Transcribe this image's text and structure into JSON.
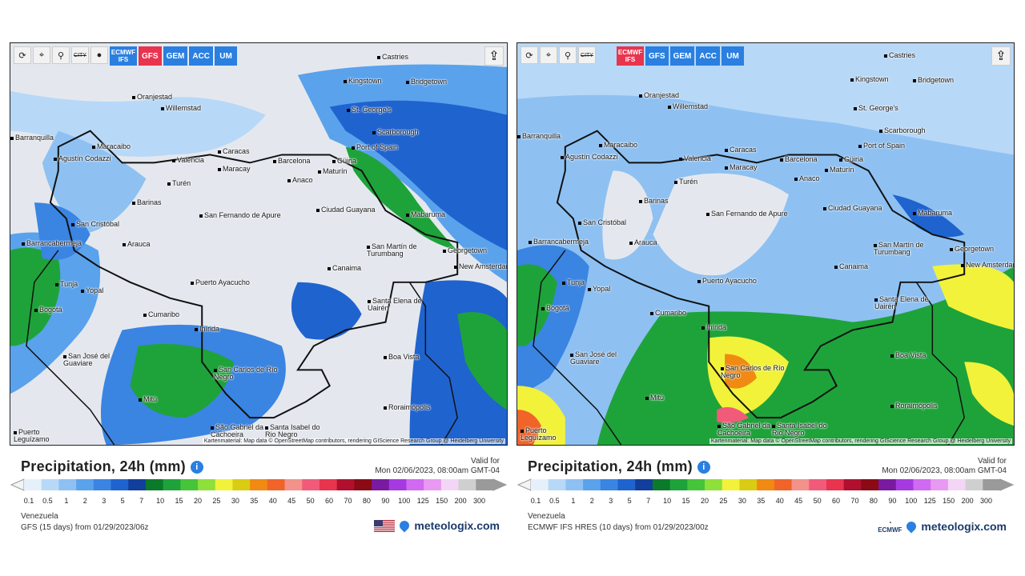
{
  "legend_colors": [
    "#e6f0fa",
    "#b8d8f7",
    "#8ec1f2",
    "#5aa2ec",
    "#3a84e2",
    "#1f63cf",
    "#123f9b",
    "#0b7a2a",
    "#1ea33a",
    "#46c43a",
    "#8ee03a",
    "#f2f23a",
    "#d9cc12",
    "#f08a12",
    "#f0642a",
    "#f2928a",
    "#f25a7a",
    "#e8344e",
    "#b0102e",
    "#8a0a16",
    "#7a1aa0",
    "#a43ae0",
    "#d06af0",
    "#e89af2",
    "#f3d6f5",
    "#cfcfcf",
    "#9a9a9a"
  ],
  "scale_labels": [
    "0.1",
    "0.5",
    "1",
    "2",
    "3",
    "5",
    "7",
    "10",
    "15",
    "20",
    "25",
    "30",
    "35",
    "40",
    "45",
    "50",
    "60",
    "70",
    "80",
    "90",
    "100",
    "125",
    "150",
    "200",
    "300"
  ],
  "panels": [
    {
      "toolbar": {
        "city_label": "CITY",
        "models": [
          "ECMWF IFS",
          "GFS",
          "GEM",
          "ACC",
          "UM"
        ],
        "active_model": "GFS"
      },
      "cities": [
        "Castries",
        "Kingstown",
        "Bridgetown",
        "Oranjestad",
        "Willemstad",
        "St. George's",
        "Scarborough",
        "Port of Spain",
        "Barranquilla",
        "Maracaibo",
        "Agustín Codazzi",
        "Valencia",
        "Caracas",
        "Maracay",
        "Barcelona",
        "Güiria",
        "Maturín",
        "Anaco",
        "Turén",
        "Barinas",
        "San Cristóbal",
        "San Fernando de Apure",
        "Ciudad Guayana",
        "Mabaruma",
        "Barrancabermeja",
        "Arauca",
        "San Martín de Turumbang",
        "Georgetown",
        "New Amsterdam",
        "Canaima",
        "Tunja",
        "Yopal",
        "Puerto Ayacucho",
        "Santa Elena de Uairén",
        "Bogotá",
        "Cumaribo",
        "Inírida",
        "Boa Vista",
        "San José del Guaviare",
        "San Carlos de Río Negro",
        "Roraimópolis",
        "Mitú",
        "São Gabriel da Cachoeira",
        "Santa Isabel do Rio Negro",
        "Puerto Leguízamo"
      ],
      "attribution": "Kartenmaterial: Map data © OpenStreetMap contributors, rendering GIScience Research Group @ Heidelberg University",
      "title": "Precipitation, 24h (mm)",
      "valid_for": "Valid for",
      "valid_date": "Mon 02/06/2023, 08:00am GMT-04",
      "region": "Venezuela",
      "model_run": "GFS (15 days) from 01/29/2023/06z",
      "brand": "meteologix.com"
    },
    {
      "toolbar": {
        "city_label": "CITY",
        "models": [
          "ECMWF IFS",
          "GFS",
          "GEM",
          "ACC",
          "UM"
        ],
        "active_model": "ECMWF IFS"
      },
      "cities": [
        "Castries",
        "Kingstown",
        "Bridgetown",
        "Oranjestad",
        "Willemstad",
        "St. George's",
        "Scarborough",
        "Port of Spain",
        "Barranquilla",
        "Maracaibo",
        "Agustín Codazzi",
        "Valencia",
        "Caracas",
        "Maracay",
        "Barcelona",
        "Güiria",
        "Maturín",
        "Anaco",
        "Turén",
        "Barinas",
        "San Cristóbal",
        "San Fernando de Apure",
        "Ciudad Guayana",
        "Mabaruma",
        "Barrancabermeja",
        "Arauca",
        "San Martín de Turumbang",
        "Georgetown",
        "New Amsterdam",
        "Canaima",
        "Tunja",
        "Yopal",
        "Puerto Ayacucho",
        "Santa Elena de Uairén",
        "Bogotá",
        "Cumaribo",
        "Inírida",
        "Boa Vista",
        "San José del Guaviare",
        "San Carlos de Río Negro",
        "Roraimópolis",
        "Mitú",
        "São Gabriel da Cachoeira",
        "Santa Isabel do Rio Negro",
        "Puerto Leguízamo"
      ],
      "attribution": "Kartenmaterial: Map data © OpenStreetMap contributors, rendering GIScience Research Group @ Heidelberg University",
      "title": "Precipitation, 24h (mm)",
      "valid_for": "Valid for",
      "valid_date": "Mon 02/06/2023, 08:00am GMT-04",
      "region": "Venezuela",
      "model_run": "ECMWF IFS HRES (10 days) from 01/29/2023/00z",
      "brand": "meteologix.com",
      "ecmwf_logo_text": "ECMWF"
    }
  ]
}
